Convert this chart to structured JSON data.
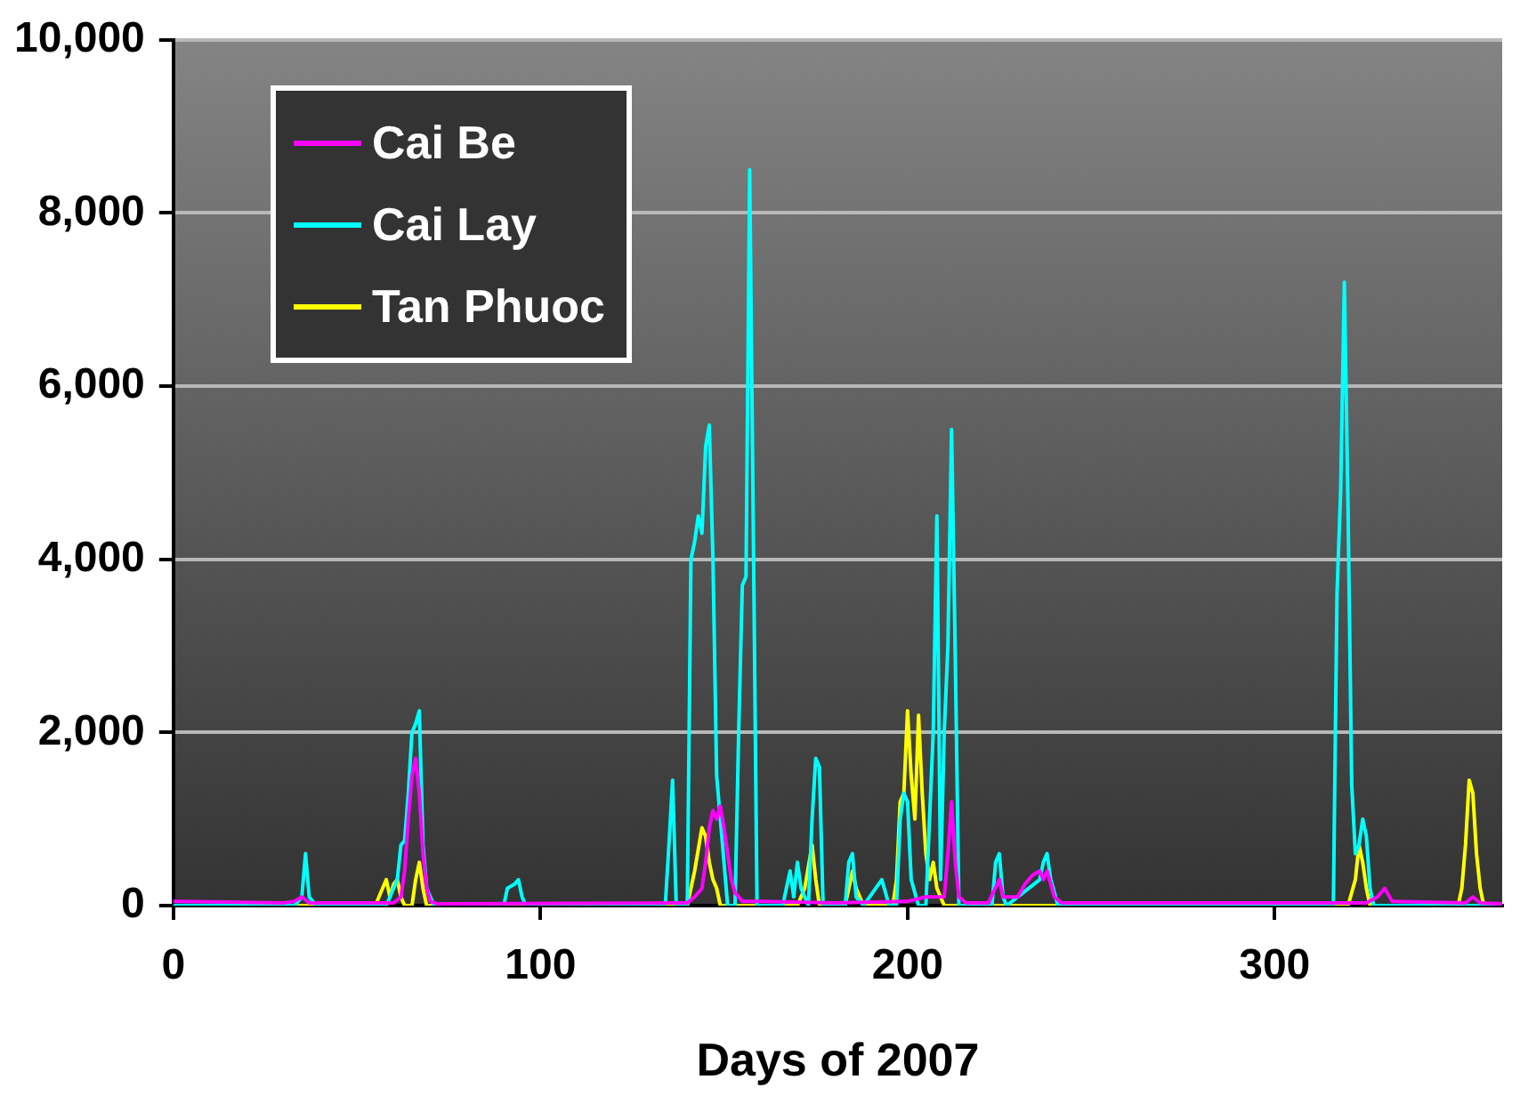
{
  "chart_data": {
    "type": "line",
    "xlabel": "Days of 2007",
    "xlim": [
      0,
      362
    ],
    "xticks": [
      0,
      100,
      200,
      300
    ],
    "ylim": [
      0,
      10000
    ],
    "yticks": [
      {
        "value": 0,
        "label": "0"
      },
      {
        "value": 2000,
        "label": "2,000"
      },
      {
        "value": 4000,
        "label": "4,000"
      },
      {
        "value": 6000,
        "label": "6,000"
      },
      {
        "value": 8000,
        "label": "8,000"
      },
      {
        "value": 10000,
        "label": "10,000"
      }
    ],
    "grid": "y",
    "legend": "top left",
    "marker": "none",
    "line_style": "solid",
    "series": [
      {
        "name": "Cai Be",
        "color": "#ff00ff",
        "x": [
          0,
          30,
          33,
          35,
          37,
          60,
          62,
          63,
          64,
          65,
          66,
          67,
          68,
          69,
          70,
          72,
          140,
          142,
          144,
          145,
          146,
          147,
          148,
          149,
          150,
          151,
          152,
          153,
          155,
          160,
          180,
          200,
          205,
          210,
          211,
          212,
          213,
          214,
          216,
          222,
          225,
          226,
          230,
          232,
          234,
          236,
          237,
          238,
          240,
          242,
          325,
          328,
          330,
          332,
          352,
          354,
          356,
          362
        ],
        "values": [
          50,
          30,
          50,
          100,
          30,
          30,
          100,
          400,
          1000,
          1500,
          1700,
          1300,
          600,
          200,
          50,
          20,
          30,
          100,
          200,
          500,
          900,
          1100,
          1000,
          1150,
          900,
          600,
          300,
          150,
          50,
          50,
          30,
          50,
          100,
          100,
          600,
          1200,
          500,
          100,
          30,
          30,
          300,
          100,
          100,
          250,
          350,
          400,
          300,
          400,
          100,
          30,
          30,
          100,
          200,
          50,
          30,
          100,
          30,
          20
        ]
      },
      {
        "name": "Cai Lay",
        "color": "#00ffff",
        "x": [
          0,
          33,
          35,
          36,
          37,
          39,
          58,
          61,
          62,
          63,
          64,
          65,
          66,
          67,
          68,
          69,
          71,
          90,
          91,
          93,
          94,
          95,
          96,
          134,
          135,
          136,
          137,
          140,
          141,
          142,
          143,
          144,
          145,
          146,
          147,
          148,
          149,
          150,
          151,
          153,
          154,
          155,
          156,
          157,
          158,
          159,
          166,
          168,
          169,
          170,
          171,
          173,
          174,
          175,
          176,
          177,
          183,
          184,
          185,
          186,
          188,
          193,
          195,
          197,
          198,
          199,
          200,
          201,
          203,
          205,
          206,
          207,
          208,
          209,
          210,
          211,
          212,
          213,
          214,
          223,
          224,
          225,
          226,
          227,
          236,
          237,
          238,
          239,
          241,
          316,
          317,
          318,
          319,
          320,
          321,
          322,
          323,
          324,
          325,
          326,
          327,
          362
        ],
        "values": [
          0,
          0,
          100,
          600,
          100,
          0,
          0,
          300,
          700,
          750,
          1300,
          2000,
          2100,
          2250,
          700,
          200,
          0,
          0,
          200,
          250,
          300,
          100,
          0,
          0,
          700,
          1450,
          0,
          0,
          4000,
          4200,
          4500,
          4300,
          5300,
          5550,
          4000,
          1500,
          1000,
          500,
          0,
          0,
          2000,
          3700,
          3800,
          8500,
          4300,
          0,
          0,
          400,
          100,
          500,
          200,
          0,
          1000,
          1700,
          1600,
          0,
          0,
          500,
          600,
          100,
          0,
          300,
          0,
          0,
          1000,
          1300,
          1200,
          300,
          0,
          0,
          1000,
          2000,
          4500,
          300,
          2000,
          3000,
          5500,
          2900,
          0,
          0,
          500,
          600,
          100,
          0,
          300,
          500,
          600,
          300,
          0,
          0,
          3600,
          4800,
          7200,
          4600,
          1400,
          600,
          700,
          1000,
          800,
          200,
          0,
          0
        ]
      },
      {
        "name": "Tan Phuoc",
        "color": "#ffff00",
        "x": [
          0,
          55,
          57,
          58,
          59,
          60,
          61,
          62,
          63,
          65,
          66,
          67,
          68,
          69,
          140,
          142,
          144,
          145,
          146,
          147,
          148,
          149,
          170,
          172,
          174,
          175,
          176,
          183,
          185,
          186,
          188,
          196,
          197,
          198,
          199,
          200,
          201,
          202,
          203,
          204,
          205,
          206,
          207,
          208,
          210,
          320,
          322,
          323,
          324,
          325,
          326,
          350,
          351,
          352,
          353,
          354,
          355,
          356,
          357,
          362
        ],
        "values": [
          0,
          0,
          200,
          300,
          100,
          250,
          300,
          100,
          0,
          0,
          300,
          500,
          200,
          0,
          0,
          400,
          900,
          800,
          500,
          300,
          200,
          0,
          0,
          200,
          700,
          300,
          0,
          0,
          400,
          200,
          0,
          0,
          300,
          1200,
          1300,
          2250,
          1500,
          1000,
          2200,
          1300,
          600,
          300,
          500,
          200,
          0,
          0,
          300,
          700,
          500,
          200,
          0,
          0,
          200,
          700,
          1450,
          1300,
          600,
          200,
          0,
          0
        ]
      }
    ]
  }
}
